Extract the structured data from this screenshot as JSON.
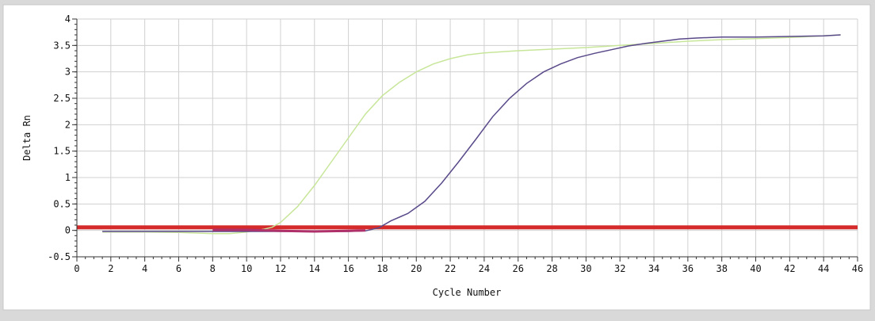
{
  "chart_data": {
    "type": "line",
    "xlabel": "Cycle Number",
    "ylabel": "Delta Rn",
    "xlim": [
      0,
      46
    ],
    "ylim": [
      -0.5,
      4
    ],
    "x_ticks": [
      0,
      2,
      4,
      6,
      8,
      10,
      12,
      14,
      16,
      18,
      20,
      22,
      24,
      26,
      28,
      30,
      32,
      34,
      36,
      38,
      40,
      42,
      44,
      46
    ],
    "y_ticks": [
      -0.5,
      0,
      0.5,
      1,
      1.5,
      2,
      2.5,
      3,
      3.5,
      4
    ],
    "grid": true,
    "threshold": {
      "value": 0.05,
      "color": "#d42a2a"
    },
    "series": [
      {
        "color": "#c8e69a",
        "points": [
          [
            1.5,
            -0.03
          ],
          [
            4,
            -0.03
          ],
          [
            6,
            -0.04
          ],
          [
            8,
            -0.06
          ],
          [
            9,
            -0.06
          ],
          [
            10,
            -0.03
          ],
          [
            11,
            0.02
          ],
          [
            11.5,
            0.06
          ],
          [
            12,
            0.15
          ],
          [
            13,
            0.45
          ],
          [
            14,
            0.85
          ],
          [
            15,
            1.3
          ],
          [
            16,
            1.75
          ],
          [
            17,
            2.2
          ],
          [
            18,
            2.55
          ],
          [
            19,
            2.8
          ],
          [
            20,
            3.0
          ],
          [
            21,
            3.15
          ],
          [
            22,
            3.25
          ],
          [
            23,
            3.32
          ],
          [
            24,
            3.36
          ],
          [
            26,
            3.4
          ],
          [
            28,
            3.43
          ],
          [
            30,
            3.46
          ],
          [
            32,
            3.5
          ],
          [
            34,
            3.54
          ],
          [
            36,
            3.58
          ],
          [
            38,
            3.61
          ],
          [
            40,
            3.63
          ],
          [
            42,
            3.65
          ],
          [
            44,
            3.68
          ],
          [
            45,
            3.7
          ]
        ]
      },
      {
        "color": "#5a4a8a",
        "points": [
          [
            1.5,
            -0.02
          ],
          [
            6,
            -0.02
          ],
          [
            10,
            -0.02
          ],
          [
            14,
            -0.02
          ],
          [
            16,
            -0.02
          ],
          [
            17,
            -0.01
          ],
          [
            17.8,
            0.05
          ],
          [
            18.5,
            0.18
          ],
          [
            19.5,
            0.32
          ],
          [
            20.5,
            0.55
          ],
          [
            21.5,
            0.9
          ],
          [
            22.5,
            1.3
          ],
          [
            23.5,
            1.72
          ],
          [
            24.5,
            2.15
          ],
          [
            25.5,
            2.5
          ],
          [
            26.5,
            2.78
          ],
          [
            27.5,
            3.0
          ],
          [
            28.5,
            3.15
          ],
          [
            29.5,
            3.27
          ],
          [
            30.5,
            3.35
          ],
          [
            31.5,
            3.42
          ],
          [
            32.5,
            3.49
          ],
          [
            33.5,
            3.54
          ],
          [
            34.5,
            3.58
          ],
          [
            35.5,
            3.62
          ],
          [
            36.5,
            3.64
          ],
          [
            38,
            3.66
          ],
          [
            40,
            3.66
          ],
          [
            42,
            3.67
          ],
          [
            44,
            3.68
          ],
          [
            45,
            3.7
          ]
        ]
      },
      {
        "color": "#b0306a",
        "points": [
          [
            8,
            0.01
          ],
          [
            10,
            0.01
          ],
          [
            12,
            -0.01
          ],
          [
            14,
            -0.02
          ],
          [
            16,
            -0.01
          ],
          [
            17,
            0.0
          ]
        ]
      }
    ]
  }
}
